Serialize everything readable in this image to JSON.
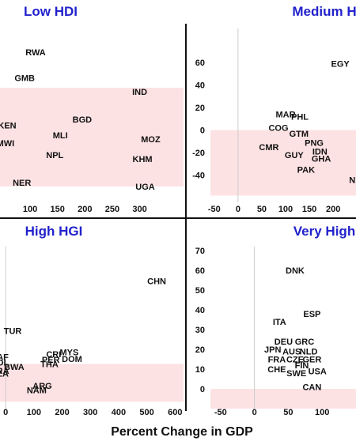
{
  "xlabel": "Percent Change in GDP",
  "colors": {
    "title": "#2222cc",
    "shade": "#fde2e4",
    "divider": "#111111",
    "zero_line": "#cccccc"
  },
  "chart_data": [
    {
      "type": "scatter",
      "title": "Low HDI",
      "xlim": [
        45,
        380
      ],
      "ylim": [
        -18,
        70
      ],
      "x_ticks": [
        100,
        150,
        200,
        250,
        300
      ],
      "y_ticks": [],
      "shade_y": [
        -10,
        40
      ],
      "points": [
        {
          "label": "RWA",
          "x": 110,
          "y": 58
        },
        {
          "label": "GMB",
          "x": 90,
          "y": 45
        },
        {
          "label": "IND",
          "x": 300,
          "y": 38
        },
        {
          "label": "BGD",
          "x": 195,
          "y": 24
        },
        {
          "label": "KEN",
          "x": 58,
          "y": 21
        },
        {
          "label": "MLI",
          "x": 155,
          "y": 16
        },
        {
          "label": "MOZ",
          "x": 320,
          "y": 14
        },
        {
          "label": "MWI",
          "x": 55,
          "y": 12
        },
        {
          "label": "NPL",
          "x": 145,
          "y": 6
        },
        {
          "label": "KHM",
          "x": 305,
          "y": 4
        },
        {
          "label": "NER",
          "x": 85,
          "y": -8
        },
        {
          "label": "UGA",
          "x": 310,
          "y": -10
        }
      ]
    },
    {
      "type": "scatter",
      "title": "Medium H",
      "xlim": [
        -58,
        248
      ],
      "ylim": [
        -64,
        90
      ],
      "x_ticks": [
        -50,
        0,
        50,
        100,
        150,
        200
      ],
      "y_ticks": [
        -40,
        -20,
        0,
        20,
        40,
        60
      ],
      "shade_y": [
        -58,
        0
      ],
      "points": [
        {
          "label": "EGY",
          "x": 215,
          "y": 59
        },
        {
          "label": "MAR",
          "x": 100,
          "y": 14
        },
        {
          "label": "PHL",
          "x": 130,
          "y": 12
        },
        {
          "label": "COG",
          "x": 85,
          "y": 2
        },
        {
          "label": "GTM",
          "x": 128,
          "y": -3
        },
        {
          "label": "PNG",
          "x": 160,
          "y": -11
        },
        {
          "label": "CMR",
          "x": 65,
          "y": -15
        },
        {
          "label": "IDN",
          "x": 172,
          "y": -19
        },
        {
          "label": "GUY",
          "x": 118,
          "y": -22
        },
        {
          "label": "GHA",
          "x": 175,
          "y": -25
        },
        {
          "label": "PAK",
          "x": 143,
          "y": -35
        },
        {
          "label": "N",
          "x": 240,
          "y": -44
        }
      ]
    },
    {
      "type": "scatter",
      "title": "High HGI",
      "xlim": [
        -20,
        630
      ],
      "ylim": [
        -35,
        200
      ],
      "x_ticks": [
        0,
        100,
        200,
        300,
        400,
        500,
        600
      ],
      "y_ticks": [],
      "shade_y": [
        -25,
        30
      ],
      "points": [
        {
          "label": "CHN",
          "x": 535,
          "y": 150
        },
        {
          "label": "TUR",
          "x": 25,
          "y": 78
        },
        {
          "label": "MYS",
          "x": 225,
          "y": 47
        },
        {
          "label": "CRI",
          "x": 170,
          "y": 44
        },
        {
          "label": "AF",
          "x": -10,
          "y": 40
        },
        {
          "label": "PER",
          "x": 160,
          "y": 36
        },
        {
          "label": "DOM",
          "x": 235,
          "y": 37
        },
        {
          "label": "OL",
          "x": -10,
          "y": 32
        },
        {
          "label": "THA",
          "x": 155,
          "y": 30
        },
        {
          "label": "BWA",
          "x": 30,
          "y": 26
        },
        {
          "label": "RA",
          "x": -10,
          "y": 20
        },
        {
          "label": "ZA",
          "x": -10,
          "y": 16
        },
        {
          "label": "ARG",
          "x": 130,
          "y": -2
        },
        {
          "label": "NAM",
          "x": 110,
          "y": -8
        }
      ]
    },
    {
      "type": "scatter",
      "title": "Very High",
      "xlim": [
        -65,
        150
      ],
      "ylim": [
        -10,
        72
      ],
      "x_ticks": [
        -50,
        0,
        50,
        100
      ],
      "y_ticks": [
        0,
        10,
        20,
        30,
        40,
        50,
        60,
        70
      ],
      "shade_y": [
        -12,
        0
      ],
      "points": [
        {
          "label": "DNK",
          "x": 60,
          "y": 60
        },
        {
          "label": "ESP",
          "x": 85,
          "y": 38
        },
        {
          "label": "ITA",
          "x": 37,
          "y": 34
        },
        {
          "label": "DEU",
          "x": 43,
          "y": 24
        },
        {
          "label": "GRC",
          "x": 74,
          "y": 24
        },
        {
          "label": "JPN",
          "x": 27,
          "y": 20
        },
        {
          "label": "AUS",
          "x": 55,
          "y": 19
        },
        {
          "label": "NLD",
          "x": 80,
          "y": 19
        },
        {
          "label": "FRA",
          "x": 33,
          "y": 15
        },
        {
          "label": "CZE",
          "x": 60,
          "y": 15
        },
        {
          "label": "GER",
          "x": 85,
          "y": 15
        },
        {
          "label": "CHE",
          "x": 33,
          "y": 10
        },
        {
          "label": "FIN",
          "x": 70,
          "y": 12
        },
        {
          "label": "USA",
          "x": 93,
          "y": 9
        },
        {
          "label": "SWE",
          "x": 62,
          "y": 8
        },
        {
          "label": "CAN",
          "x": 85,
          "y": 1
        }
      ]
    }
  ]
}
